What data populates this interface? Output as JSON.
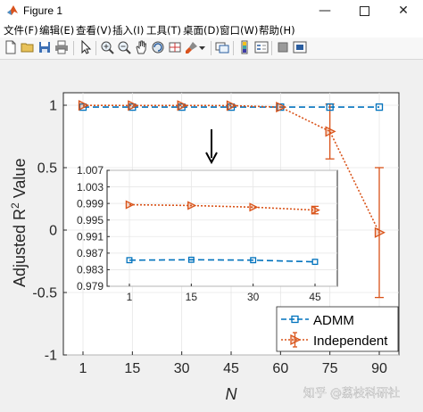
{
  "window": {
    "title": "Figure 1",
    "minimize_icon": "minimize-icon",
    "maximize_icon": "maximize-icon",
    "close_icon": "close-icon"
  },
  "menu": {
    "items": [
      {
        "label": "文件(F)"
      },
      {
        "label": "编辑(E)"
      },
      {
        "label": "查看(V)"
      },
      {
        "label": "插入(I)"
      },
      {
        "label": "工具(T)"
      },
      {
        "label": "桌面(D)"
      },
      {
        "label": "窗口(W)"
      },
      {
        "label": "帮助(H)"
      }
    ]
  },
  "toolbar": {
    "icons": [
      "new-figure-icon",
      "open-icon",
      "save-icon",
      "print-icon",
      "pointer-icon",
      "zoom-in-icon",
      "zoom-out-icon",
      "pan-icon",
      "rotate-icon",
      "data-cursor-icon",
      "brush-icon",
      "brush-dropdown-icon",
      "link-plot-icon",
      "colorbar-icon",
      "legend-icon",
      "hide-plot-tools-icon",
      "show-plot-tools-icon"
    ]
  },
  "watermark": "知乎 @荔枝科研社",
  "colors": {
    "admm": "#0072BD",
    "independent": "#D95319",
    "plot_bg": "#ffffff",
    "figure_bg": "#f0f0f0"
  },
  "chart_data": [
    {
      "type": "line",
      "xlabel": "N",
      "ylabel": "Adjusted R² Value",
      "ylabel_main": "Adjusted R",
      "ylabel_sup": "2",
      "ylabel_rest": " Value",
      "categories": [
        "1",
        "15",
        "30",
        "45",
        "60",
        "75",
        "90"
      ],
      "ylim": [
        -1,
        1.1
      ],
      "yticks": [
        "-1",
        "-0.5",
        "0",
        "0.5",
        "1"
      ],
      "grid": true,
      "legend_position": "bottom-right",
      "series": [
        {
          "name": "ADMM",
          "style": "dashed-square",
          "values": [
            0.985,
            0.985,
            0.985,
            0.985,
            0.985,
            0.985,
            0.985
          ]
        },
        {
          "name": "Independent",
          "style": "dotted-triangle-errorbar",
          "values": [
            0.999,
            0.998,
            0.998,
            0.997,
            0.985,
            0.79,
            -0.02
          ],
          "error": [
            0.0,
            0.0,
            0.0,
            0.0,
            0.0,
            0.22,
            0.52
          ]
        }
      ]
    },
    {
      "type": "line",
      "inset": true,
      "categories": [
        "1",
        "15",
        "30",
        "45"
      ],
      "ylim": [
        0.979,
        1.007
      ],
      "yticks": [
        "0.979",
        "0.983",
        "0.987",
        "0.991",
        "0.995",
        "0.999",
        "1.003",
        "1.007"
      ],
      "grid": true,
      "series": [
        {
          "name": "ADMM",
          "values": [
            0.9853,
            0.9854,
            0.9853,
            0.9849
          ]
        },
        {
          "name": "Independent",
          "values": [
            0.9987,
            0.9985,
            0.9981,
            0.9974
          ],
          "error": [
            0.0,
            0.0,
            0.0,
            0.0009
          ]
        }
      ]
    }
  ]
}
